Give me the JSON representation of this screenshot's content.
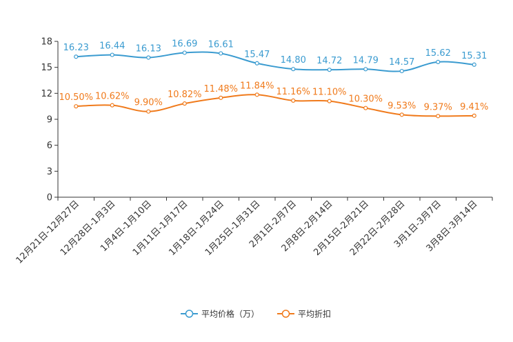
{
  "chart_data": {
    "type": "line",
    "title": "",
    "xlabel": "",
    "ylabel": "",
    "categories": [
      "12月21日-12月27日",
      "12月28日-1月3日",
      "1月4日-1月10日",
      "1月11日-1月17日",
      "1月18日-1月24日",
      "1月25日-1月31日",
      "2月1日-2月7日",
      "2月8日-2月14日",
      "2月15日-2月21日",
      "2月22日-2月28日",
      "3月1日-3月7日",
      "3月8日-3月14日"
    ],
    "ylim": [
      0,
      18
    ],
    "yticks": [
      0,
      3,
      6,
      9,
      12,
      15,
      18
    ],
    "grid": false,
    "legend_position": "bottom-center",
    "series": [
      {
        "name": "平均价格（万）",
        "color": "#3a9bd0",
        "values": [
          16.23,
          16.44,
          16.13,
          16.69,
          16.61,
          15.47,
          14.8,
          14.72,
          14.79,
          14.57,
          15.62,
          15.31
        ],
        "labels": [
          "16.23",
          "16.44",
          "16.13",
          "16.69",
          "16.61",
          "15.47",
          "14.80",
          "14.72",
          "14.79",
          "14.57",
          "15.62",
          "15.31"
        ]
      },
      {
        "name": "平均折扣",
        "color": "#f07a1b",
        "values": [
          10.5,
          10.62,
          9.9,
          10.82,
          11.48,
          11.84,
          11.16,
          11.1,
          10.3,
          9.53,
          9.37,
          9.41
        ],
        "labels": [
          "10.50%",
          "10.62%",
          "9.90%",
          "10.82%",
          "11.48%",
          "11.84%",
          "11.16%",
          "11.10%",
          "10.30%",
          "9.53%",
          "9.37%",
          "9.41%"
        ]
      }
    ]
  }
}
